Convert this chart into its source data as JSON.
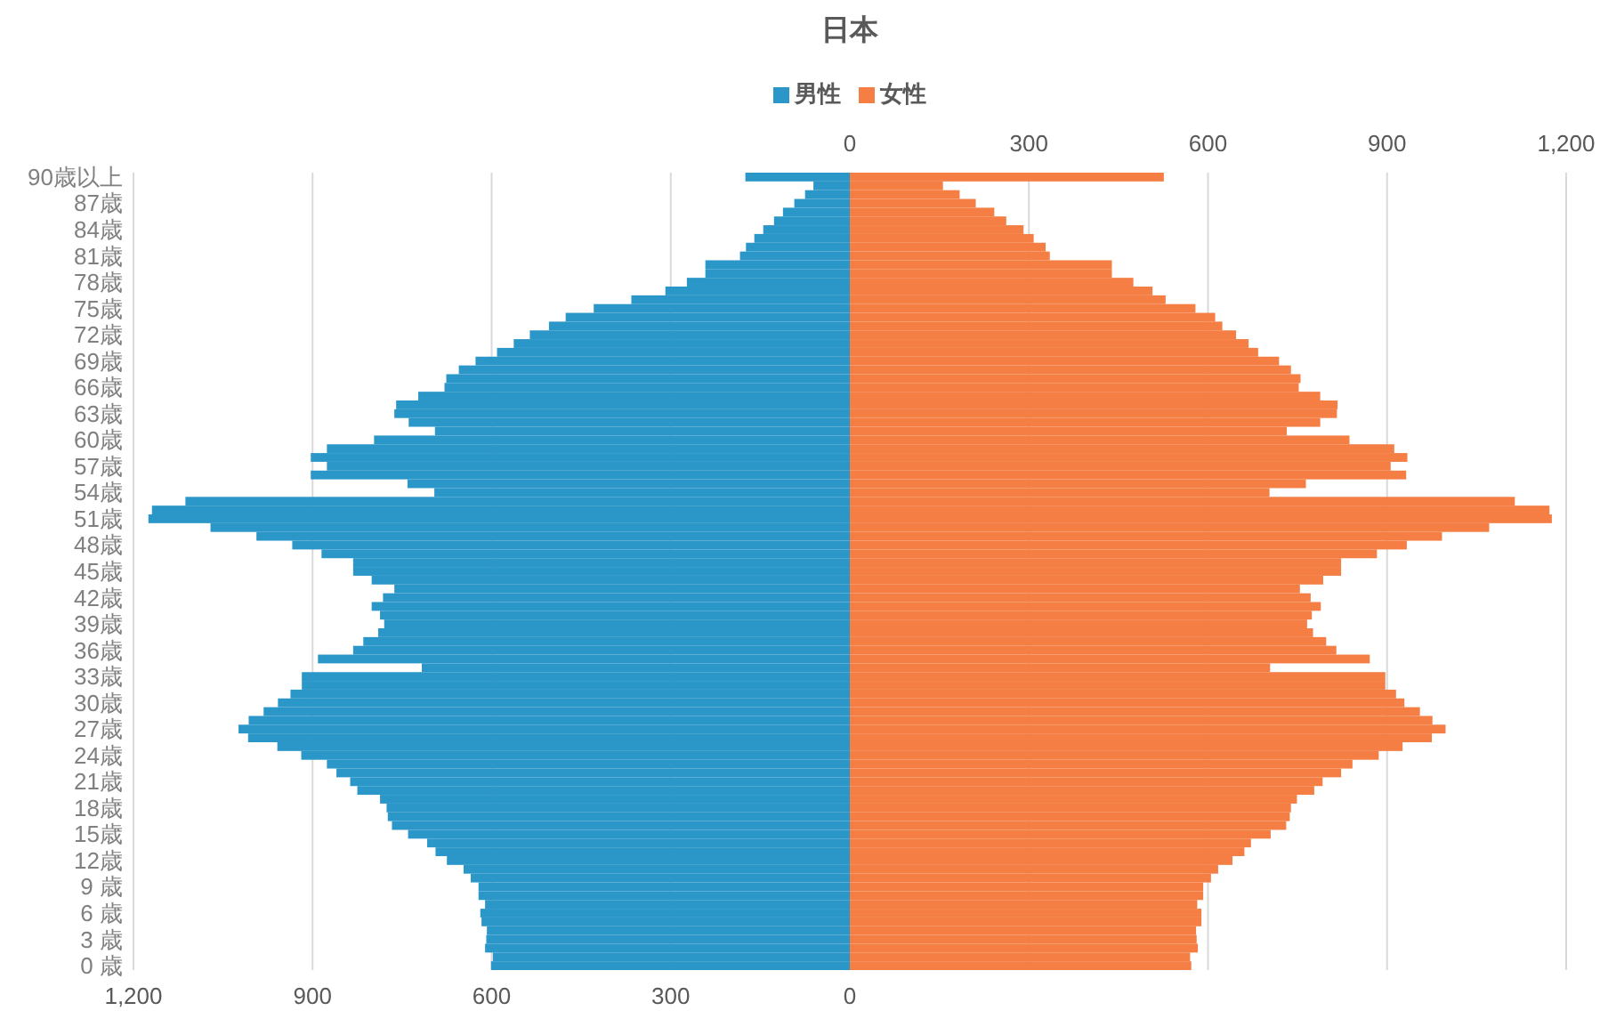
{
  "chart_data": {
    "type": "bar",
    "orientation": "horizontal",
    "stacked": true,
    "title": "日本",
    "categories": [
      "90歳以上",
      null,
      null,
      "87歳",
      null,
      null,
      "84歳",
      null,
      null,
      "81歳",
      null,
      null,
      "78歳",
      null,
      null,
      "75歳",
      null,
      null,
      "72歳",
      null,
      null,
      "69歳",
      null,
      null,
      "66歳",
      null,
      null,
      "63歳",
      null,
      null,
      "60歳",
      null,
      null,
      "57歳",
      null,
      null,
      "54歳",
      null,
      null,
      "51歳",
      null,
      null,
      "48歳",
      null,
      null,
      "45歳",
      null,
      null,
      "42歳",
      null,
      null,
      "39歳",
      null,
      null,
      "36歳",
      null,
      null,
      "33歳",
      null,
      null,
      "30歳",
      null,
      null,
      "27歳",
      null,
      null,
      "24歳",
      null,
      null,
      "21歳",
      null,
      null,
      "18歳",
      null,
      null,
      "15歳",
      null,
      null,
      "12歳",
      null,
      null,
      "9 歳",
      null,
      null,
      "6 歳",
      null,
      null,
      "3 歳",
      null,
      null,
      "0 歳"
    ],
    "series": [
      {
        "name": "男性",
        "color": "#2b96c8",
        "values": [
          -175,
          -61,
          -75,
          -93,
          -112,
          -127,
          -145,
          -160,
          -174,
          -184,
          -242,
          -242,
          -273,
          -309,
          -366,
          -429,
          -476,
          -504,
          -536,
          -563,
          -591,
          -627,
          -655,
          -676,
          -679,
          -723,
          -760,
          -763,
          -739,
          -695,
          -797,
          -876,
          -903,
          -876,
          -903,
          -741,
          -696,
          -1113,
          -1169,
          -1175,
          -1071,
          -994,
          -934,
          -885,
          -832,
          -832,
          -801,
          -763,
          -782,
          -801,
          -787,
          -780,
          -790,
          -815,
          -832,
          -891,
          -717,
          -918,
          -918,
          -937,
          -958,
          -982,
          -1007,
          -1024,
          -1008,
          -959,
          -919,
          -876,
          -860,
          -837,
          -825,
          -787,
          -776,
          -774,
          -767,
          -740,
          -708,
          -694,
          -675,
          -647,
          -635,
          -622,
          -622,
          -611,
          -619,
          -617,
          -608,
          -609,
          -611,
          -598,
          -601
        ]
      },
      {
        "name": "女性",
        "color": "#f47e43",
        "values": [
          526,
          156,
          184,
          211,
          242,
          262,
          291,
          308,
          328,
          335,
          439,
          439,
          475,
          507,
          529,
          579,
          612,
          624,
          647,
          668,
          684,
          719,
          739,
          755,
          752,
          788,
          817,
          816,
          788,
          732,
          837,
          912,
          934,
          906,
          932,
          764,
          703,
          1114,
          1172,
          1176,
          1071,
          992,
          933,
          883,
          823,
          823,
          793,
          754,
          772,
          789,
          774,
          766,
          776,
          798,
          815,
          871,
          704,
          897,
          897,
          915,
          929,
          955,
          976,
          998,
          975,
          926,
          886,
          842,
          823,
          792,
          778,
          749,
          739,
          737,
          731,
          705,
          672,
          661,
          641,
          617,
          605,
          592,
          592,
          582,
          589,
          589,
          580,
          581,
          583,
          570,
          572
        ]
      }
    ],
    "xlim": [
      -1200,
      1200
    ],
    "xticks": [
      {
        "value": -1200,
        "label": "1,200"
      },
      {
        "value": -900,
        "label": "900"
      },
      {
        "value": -600,
        "label": "600"
      },
      {
        "value": -300,
        "label": "300"
      },
      0
    ],
    "x2lim": [
      -1200,
      1200
    ],
    "x2ticks": [
      0,
      300,
      600,
      900,
      {
        "value": 1200,
        "label": "1,200"
      }
    ],
    "grid": "x",
    "legend": "top"
  }
}
